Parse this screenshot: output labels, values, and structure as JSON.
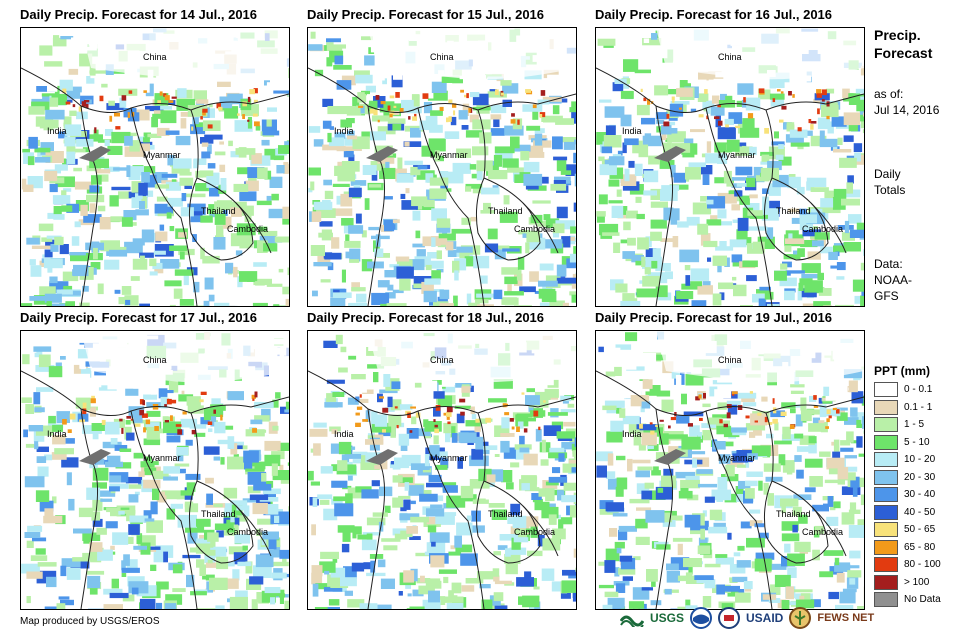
{
  "panels": [
    {
      "title": "Daily Precip. Forecast for 14 Jul., 2016",
      "labels": {
        "china": "China",
        "india": "India",
        "myanmar": "Myanmar",
        "thailand": "Thailand",
        "cambodia": "Cambodia"
      }
    },
    {
      "title": "Daily Precip. Forecast for 15 Jul., 2016",
      "labels": {
        "china": "China",
        "india": "India",
        "myanmar": "Myanmar",
        "thailand": "Thailand",
        "cambodia": "Cambodia"
      }
    },
    {
      "title": "Daily Precip. Forecast for 16 Jul., 2016",
      "labels": {
        "china": "China",
        "india": "India",
        "myanmar": "Myanmar",
        "thailand": "Thailand",
        "cambodia": "Cambodia"
      }
    },
    {
      "title": "Daily Precip. Forecast for 17 Jul., 2016",
      "labels": {
        "china": "China",
        "india": "India",
        "myanmar": "Myanmar",
        "thailand": "Thailand",
        "cambodia": "Cambodia"
      }
    },
    {
      "title": "Daily Precip. Forecast for 18 Jul., 2016",
      "labels": {
        "china": "China",
        "india": "India",
        "myanmar": "Myanmar",
        "thailand": "Thailand",
        "cambodia": "Cambodia"
      }
    },
    {
      "title": "Daily Precip. Forecast for 19 Jul., 2016",
      "labels": {
        "china": "China",
        "india": "India",
        "myanmar": "Myanmar",
        "thailand": "Thailand",
        "cambodia": "Cambodia"
      }
    }
  ],
  "sidebar": {
    "title_line1": "Precip.",
    "title_line2": "Forecast",
    "asof_line1": "as of:",
    "asof_line2": "Jul 14, 2016",
    "totals_line1": "Daily",
    "totals_line2": "Totals",
    "data_line1": "Data:",
    "data_line2": "NOAA-",
    "data_line3": "GFS"
  },
  "legend": {
    "title": "PPT (mm)",
    "items": [
      {
        "label": "0 - 0.1",
        "color": "#ffffff"
      },
      {
        "label": "0.1 - 1",
        "color": "#e8d8b8"
      },
      {
        "label": "1 - 5",
        "color": "#b9f0a8"
      },
      {
        "label": "5 - 10",
        "color": "#6ee46a"
      },
      {
        "label": "10 - 20",
        "color": "#b8ecf5"
      },
      {
        "label": "20 - 30",
        "color": "#7fc3ee"
      },
      {
        "label": "30 - 40",
        "color": "#4d95ea"
      },
      {
        "label": "40 - 50",
        "color": "#2c5fd6"
      },
      {
        "label": "50 - 65",
        "color": "#f8e27a"
      },
      {
        "label": "65 - 80",
        "color": "#f29a1a"
      },
      {
        "label": "80 - 100",
        "color": "#e23b10"
      },
      {
        "label": "> 100",
        "color": "#a41e1e"
      },
      {
        "label": "No Data",
        "color": "#909090"
      }
    ]
  },
  "footer": {
    "credit": "Map produced by USGS/EROS",
    "logo_usgs": "USGS",
    "logo_usaid": "USAID",
    "logo_fewsnet": "FEWS NET"
  }
}
